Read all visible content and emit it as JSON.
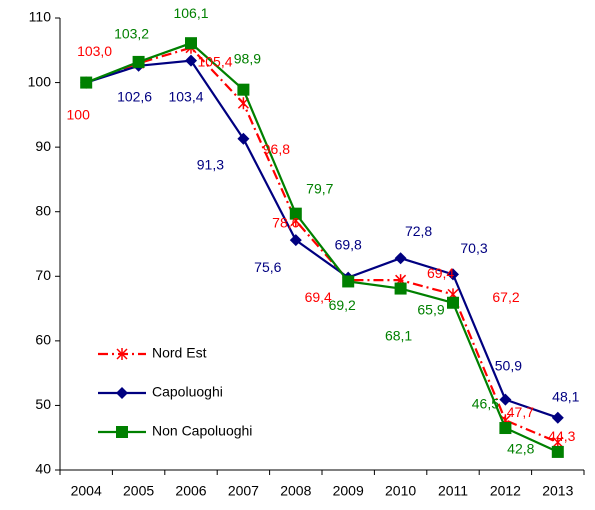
{
  "chart_data": {
    "type": "line",
    "categories": [
      "2004",
      "2005",
      "2006",
      "2007",
      "2008",
      "2009",
      "2010",
      "2011",
      "2012",
      "2013"
    ],
    "series": [
      {
        "name": "Nord Est",
        "color": "#ff0000",
        "marker": "star",
        "dash": "dashdot",
        "values": [
          100,
          103.0,
          105.4,
          96.8,
          78.6,
          69.4,
          69.4,
          67.2,
          47.7,
          44.3
        ],
        "value_labels": [
          "100",
          "103,0",
          "105,4",
          "96,8",
          "78,6",
          "69,4",
          "69,4",
          "67,2",
          "47,7",
          "44,3"
        ]
      },
      {
        "name": "Capoluoghi",
        "color": "#000080",
        "marker": "diamond",
        "dash": "solid",
        "values": [
          100,
          102.6,
          103.4,
          91.3,
          75.6,
          69.8,
          72.8,
          70.3,
          50.9,
          48.1
        ],
        "value_labels": [
          null,
          "102,6",
          "103,4",
          "91,3",
          "75,6",
          "69,8",
          "72,8",
          "70,3",
          "50,9",
          "48,1"
        ]
      },
      {
        "name": "Non Capoluoghi",
        "color": "#008000",
        "marker": "square",
        "dash": "solid",
        "values": [
          100,
          103.2,
          106.1,
          98.9,
          79.7,
          69.2,
          68.1,
          65.9,
          46.5,
          42.8
        ],
        "value_labels": [
          null,
          "103,2",
          "106,1",
          "98,9",
          "79,7",
          "69,2",
          "68,1",
          "65,9",
          "46,5",
          "42,8"
        ]
      }
    ],
    "ylim": [
      40,
      110
    ],
    "yticks": [
      40,
      50,
      60,
      70,
      80,
      90,
      100,
      110
    ],
    "grid": false,
    "legend": "lower left"
  }
}
